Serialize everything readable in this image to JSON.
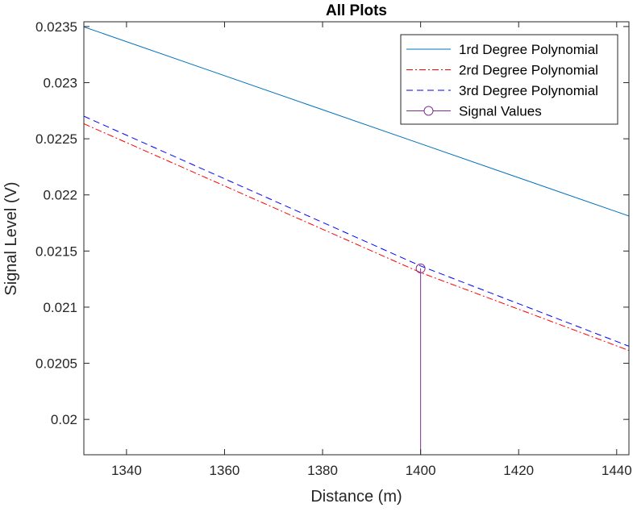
{
  "chart_data": {
    "type": "line",
    "title": "All Plots",
    "xlabel": "Distance (m)",
    "ylabel": "Signal Level (V)",
    "xlim": [
      1331.3,
      1442.5
    ],
    "ylim": [
      0.019685,
      0.0235425
    ],
    "xticks": [
      1340,
      1360,
      1380,
      1400,
      1420,
      1440
    ],
    "xtick_labels": [
      "1340",
      "1360",
      "1380",
      "1400",
      "1420",
      "1440"
    ],
    "yticks": [
      0.02,
      0.0205,
      0.021,
      0.0215,
      0.022,
      0.0225,
      0.023,
      0.0235
    ],
    "ytick_labels": [
      "0.02",
      "0.0205",
      "0.021",
      "0.0215",
      "0.022",
      "0.0225",
      "0.023",
      "0.0235"
    ],
    "legend_position": "top-right",
    "grid": false,
    "series": [
      {
        "name": "1rd Degree Polynomial",
        "style": "solid",
        "color": "#0072BD",
        "x": [
          1331.3,
          1442.5
        ],
        "y": [
          0.023497,
          0.021812
        ]
      },
      {
        "name": "2rd Degree Polynomial",
        "style": "dashdot",
        "color": "#FF0000",
        "x": [
          1331.3,
          1400,
          1442.5
        ],
        "y": [
          0.022634,
          0.021308,
          0.020614
        ]
      },
      {
        "name": "3rd Degree Polynomial",
        "style": "dashed",
        "color": "#0000FF",
        "x": [
          1331.3,
          1400,
          1442.5
        ],
        "y": [
          0.022701,
          0.021367,
          0.020652
        ]
      },
      {
        "name": "Signal Values",
        "style": "stem",
        "color": "#7E2F8E",
        "x": [
          1400
        ],
        "y": [
          0.021345
        ]
      }
    ]
  }
}
